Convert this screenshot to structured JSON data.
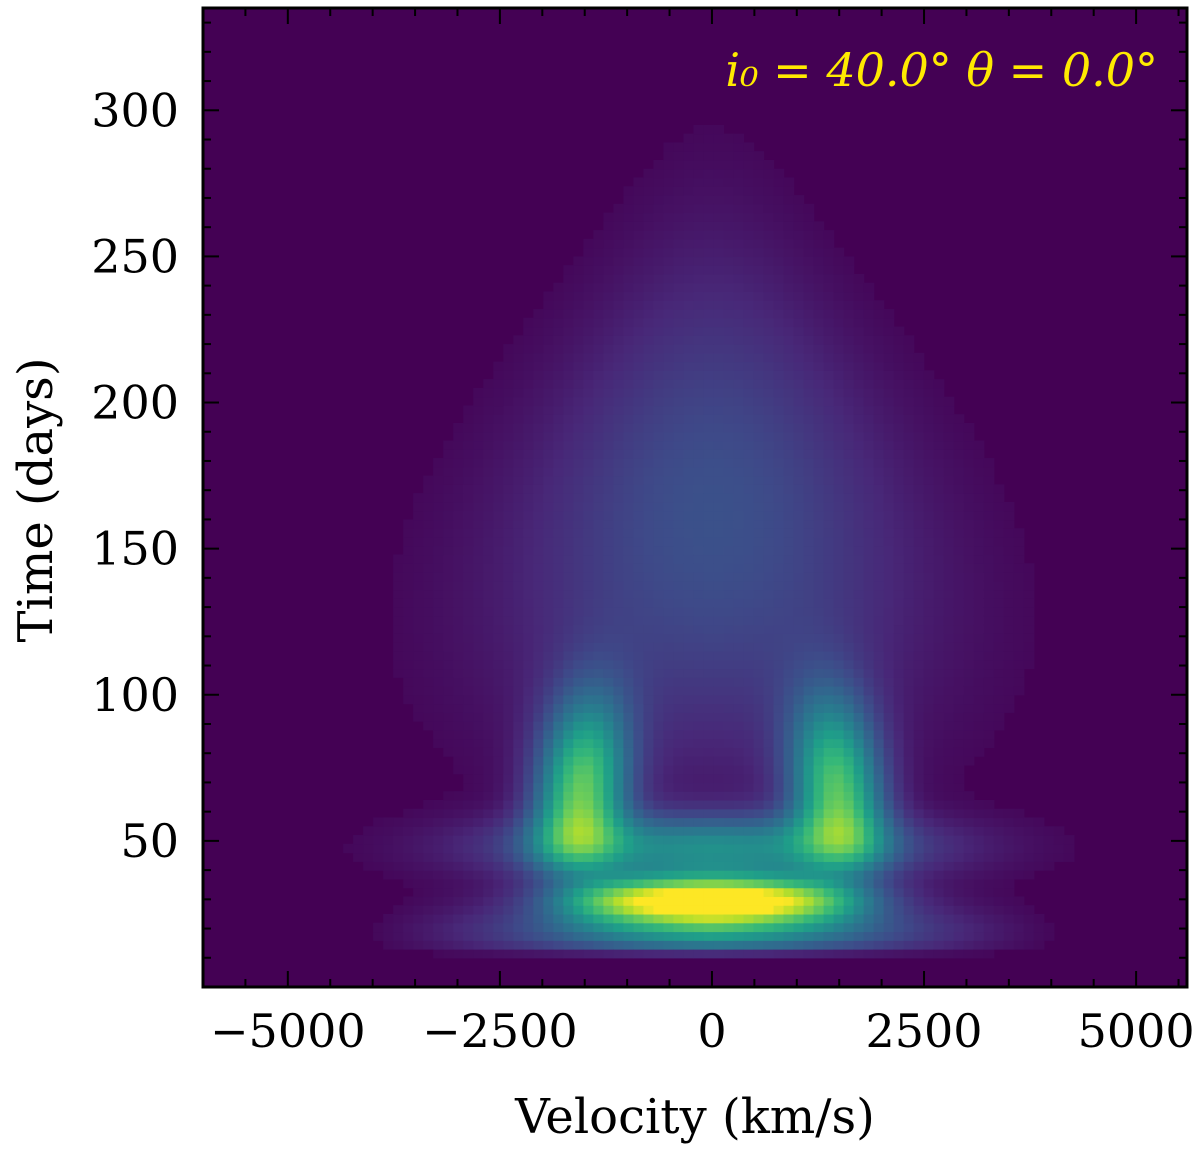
{
  "chart_data": {
    "type": "heatmap",
    "colormap": "viridis",
    "xlabel": "Velocity (km/s)",
    "ylabel": "Time (days)",
    "xlim": [
      -6000,
      5600
    ],
    "ylim": [
      0,
      335
    ],
    "x_ticks": [
      -5000,
      -2500,
      0,
      2500,
      5000
    ],
    "x_tick_labels": [
      "−5000",
      "−2500",
      "0",
      "2500",
      "5000"
    ],
    "y_ticks": [
      50,
      100,
      150,
      200,
      250,
      300
    ],
    "y_tick_labels": [
      "50",
      "100",
      "150",
      "200",
      "250",
      "300"
    ],
    "annotation": "i₀ = 40.0°   θ = 0.0°",
    "annotation_color": "#ffea00",
    "grid": false,
    "features": [
      {
        "description": "bright band",
        "velocity_range": [
          -1500,
          1500
        ],
        "time_range": [
          25,
          40
        ],
        "peak_at": [
          0,
          30
        ],
        "intensity": 1.0
      },
      {
        "description": "left arm",
        "velocity_center": -1600,
        "time_range": [
          40,
          120
        ],
        "peak_time": 65,
        "intensity": 0.7
      },
      {
        "description": "right arm",
        "velocity_center": 1500,
        "time_range": [
          40,
          120
        ],
        "peak_time": 65,
        "intensity": 0.68
      },
      {
        "description": "faint central dome",
        "velocity_range": [
          -1800,
          1800
        ],
        "time_range": [
          100,
          270
        ],
        "intensity": 0.2
      },
      {
        "description": "low-time wings",
        "velocity_range": [
          -4000,
          4000
        ],
        "time_range": [
          10,
          25
        ],
        "intensity": 0.3
      }
    ]
  }
}
